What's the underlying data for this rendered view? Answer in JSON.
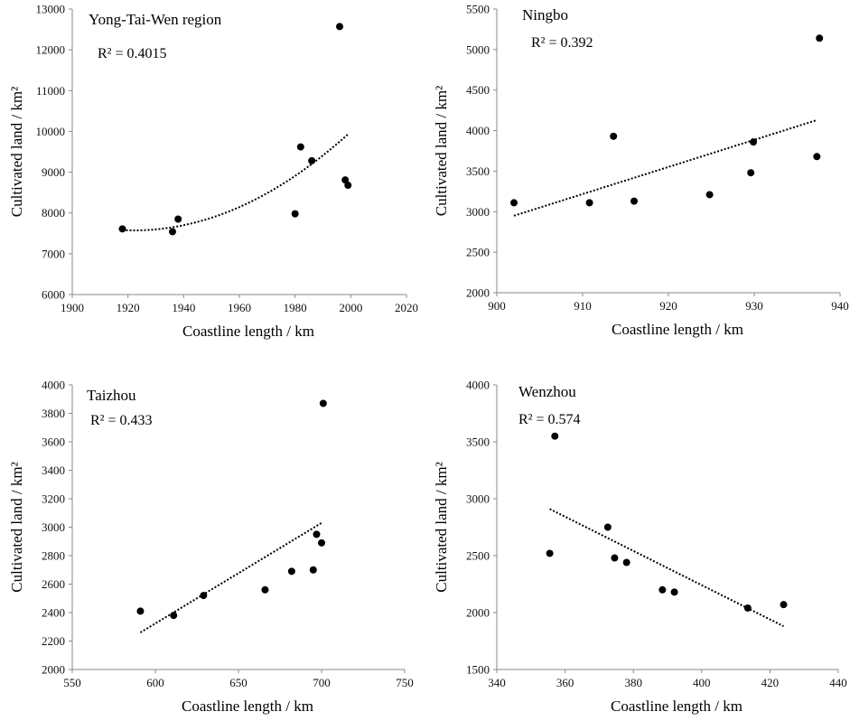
{
  "chart_data": [
    {
      "type": "scatter",
      "title": "Yong-Tai-Wen region",
      "r2_label": "R² = 0.4015",
      "xlabel": "Coastline length / km",
      "ylabel": "Cultivated land / km²",
      "xlim": [
        1900,
        2020
      ],
      "ylim": [
        6000,
        13000
      ],
      "xticks": [
        1900,
        1920,
        1940,
        1960,
        1980,
        2000,
        2020
      ],
      "yticks": [
        6000,
        7000,
        8000,
        9000,
        10000,
        11000,
        12000,
        13000
      ],
      "points": [
        {
          "x": 1918,
          "y": 7610
        },
        {
          "x": 1936,
          "y": 7540
        },
        {
          "x": 1938,
          "y": 7850
        },
        {
          "x": 1980,
          "y": 7980
        },
        {
          "x": 1982,
          "y": 9620
        },
        {
          "x": 1986,
          "y": 9280
        },
        {
          "x": 1996,
          "y": 12570
        },
        {
          "x": 1998,
          "y": 8810
        },
        {
          "x": 1999,
          "y": 8680
        }
      ],
      "trend": {
        "kind": "poly2",
        "x_from": 1918,
        "x_to": 1999,
        "anchors": [
          [
            1918,
            7580
          ],
          [
            1940,
            7700
          ],
          [
            1999,
            9930
          ]
        ]
      }
    },
    {
      "type": "scatter",
      "title": "Ningbo",
      "r2_label": "R² = 0.392",
      "xlabel": "Coastline length / km",
      "ylabel": "Cultivated land / km²",
      "xlim": [
        900,
        940
      ],
      "ylim": [
        2000,
        5500
      ],
      "xticks": [
        900,
        910,
        920,
        930,
        940
      ],
      "yticks": [
        2000,
        2500,
        3000,
        3500,
        4000,
        4500,
        5000,
        5500
      ],
      "points": [
        {
          "x": 902,
          "y": 3110
        },
        {
          "x": 910.8,
          "y": 3110
        },
        {
          "x": 913.6,
          "y": 3930
        },
        {
          "x": 916,
          "y": 3130
        },
        {
          "x": 924.8,
          "y": 3210
        },
        {
          "x": 929.6,
          "y": 3480
        },
        {
          "x": 929.9,
          "y": 3860
        },
        {
          "x": 937.3,
          "y": 3680
        },
        {
          "x": 937.6,
          "y": 5140
        }
      ],
      "trend": {
        "kind": "linear",
        "x_from": 902,
        "x_to": 937.3,
        "anchors": [
          [
            902,
            2950
          ],
          [
            937.3,
            4130
          ]
        ]
      }
    },
    {
      "type": "scatter",
      "title": "Taizhou",
      "r2_label": "R² = 0.433",
      "xlabel": "Coastline length / km",
      "ylabel": "Cultivated land / km²",
      "xlim": [
        550,
        750
      ],
      "ylim": [
        2000,
        4000
      ],
      "xticks": [
        550,
        600,
        650,
        700,
        750
      ],
      "yticks": [
        2000,
        2200,
        2400,
        2600,
        2800,
        3000,
        3200,
        3400,
        3600,
        3800,
        4000
      ],
      "points": [
        {
          "x": 591,
          "y": 2410
        },
        {
          "x": 611,
          "y": 2380
        },
        {
          "x": 629,
          "y": 2520
        },
        {
          "x": 666,
          "y": 2560
        },
        {
          "x": 682,
          "y": 2690
        },
        {
          "x": 695,
          "y": 2700
        },
        {
          "x": 697,
          "y": 2950
        },
        {
          "x": 700,
          "y": 2890
        },
        {
          "x": 701,
          "y": 3870
        }
      ],
      "trend": {
        "kind": "linear",
        "x_from": 591,
        "x_to": 700,
        "anchors": [
          [
            591,
            2260
          ],
          [
            700,
            3030
          ]
        ]
      }
    },
    {
      "type": "scatter",
      "title": "Wenzhou",
      "r2_label": "R² = 0.574",
      "xlabel": "Coastline length / km",
      "ylabel": "Cultivated land / km²",
      "xlim": [
        340,
        440
      ],
      "ylim": [
        1500,
        4000
      ],
      "xticks": [
        340,
        360,
        380,
        400,
        420,
        440
      ],
      "yticks": [
        1500,
        2000,
        2500,
        3000,
        3500,
        4000
      ],
      "points": [
        {
          "x": 355.5,
          "y": 2520
        },
        {
          "x": 357,
          "y": 3550
        },
        {
          "x": 372.5,
          "y": 2750
        },
        {
          "x": 374.5,
          "y": 2480
        },
        {
          "x": 378,
          "y": 2440
        },
        {
          "x": 388.5,
          "y": 2200
        },
        {
          "x": 392,
          "y": 2180
        },
        {
          "x": 413.5,
          "y": 2040
        },
        {
          "x": 424,
          "y": 2070
        }
      ],
      "trend": {
        "kind": "linear",
        "x_from": 355.5,
        "x_to": 424,
        "anchors": [
          [
            355.5,
            2910
          ],
          [
            424,
            1880
          ]
        ]
      }
    }
  ]
}
